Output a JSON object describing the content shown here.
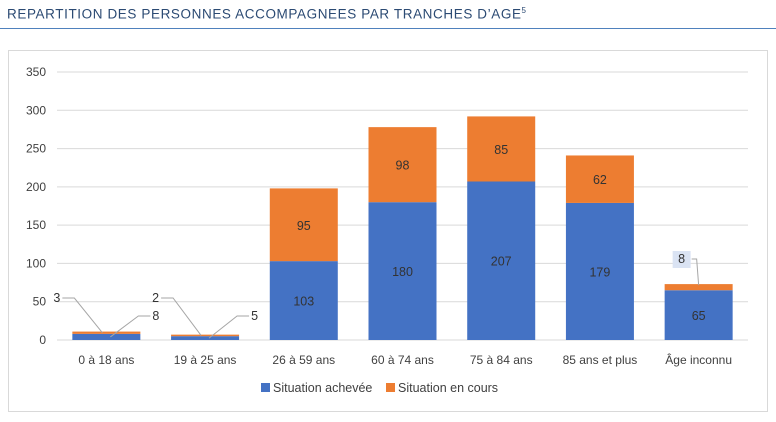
{
  "header": {
    "title": "REPARTITION DES PERSONNES ACCOMPAGNEES PAR TRANCHES D’AGE",
    "footnote": "5"
  },
  "colors": {
    "achevee": "#4472c4",
    "en_cours": "#ed7d31",
    "grid": "#d9d9d9",
    "callout": "#a6a6a6"
  },
  "chart_data": {
    "type": "bar",
    "stacked": true,
    "title": "REPARTITION DES PERSONNES ACCOMPAGNEES PAR TRANCHES D’AGE",
    "xlabel": "",
    "ylabel": "",
    "ylim": [
      0,
      350
    ],
    "yticks": [
      0,
      50,
      100,
      150,
      200,
      250,
      300,
      350
    ],
    "grid": true,
    "legend_position": "bottom",
    "categories": [
      "0 à 18 ans",
      "19 à 25 ans",
      "26 à 59 ans",
      "60 à 74 ans",
      "75 à 84 ans",
      "85 ans et plus",
      "Âge inconnu"
    ],
    "series": [
      {
        "name": "Situation achevée",
        "values": [
          8,
          5,
          103,
          180,
          207,
          179,
          65
        ]
      },
      {
        "name": "Situation en cours",
        "values": [
          3,
          2,
          95,
          98,
          85,
          62,
          8
        ]
      }
    ]
  }
}
